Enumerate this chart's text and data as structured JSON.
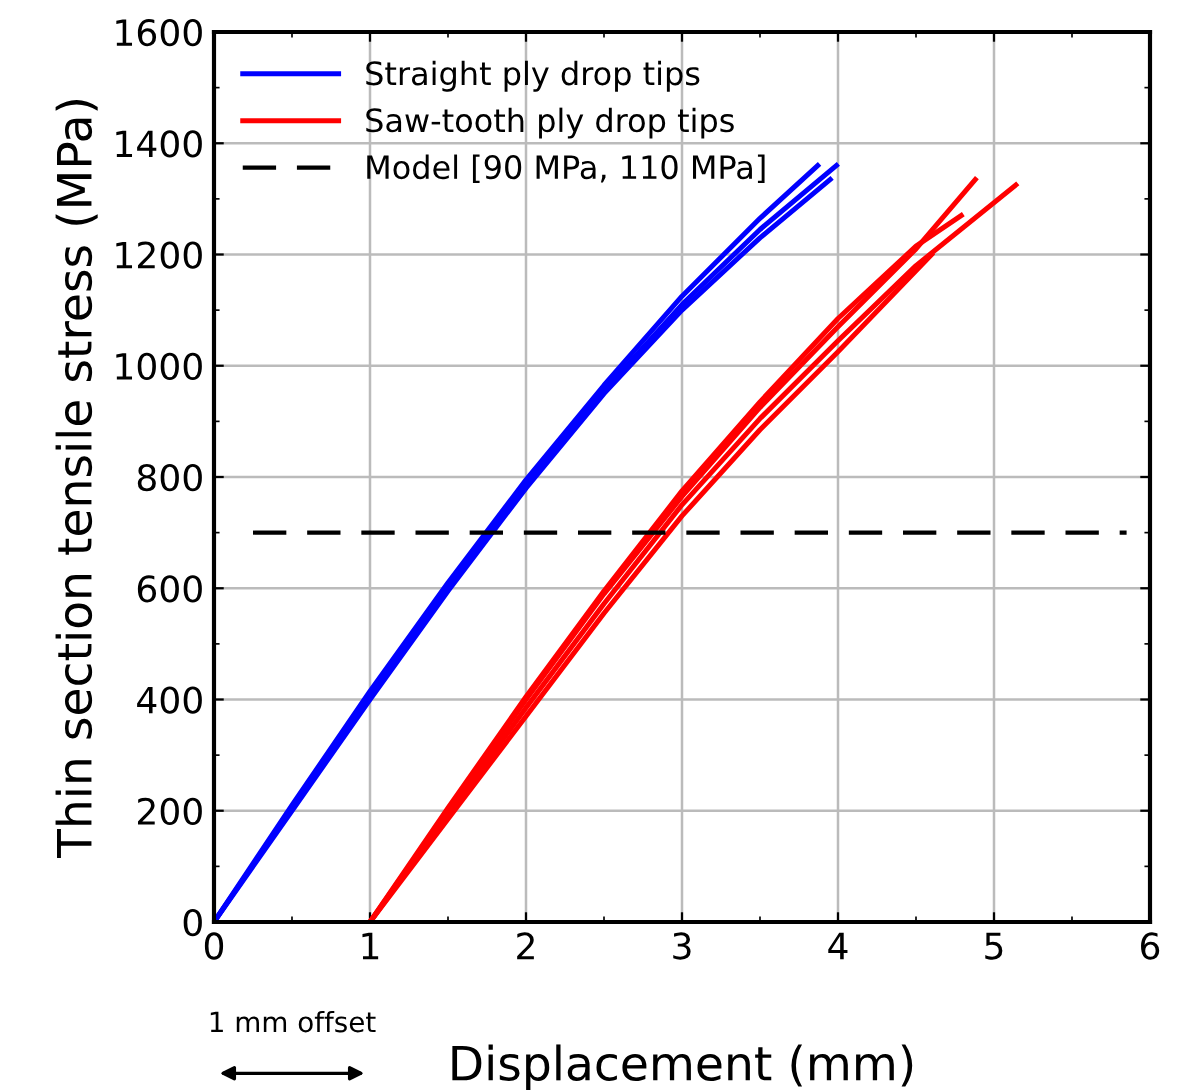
{
  "chart_data": {
    "type": "line",
    "xlabel": "Displacement (mm)",
    "ylabel": "Thin section tensile stress (MPa)",
    "xlim": [
      0,
      6
    ],
    "xticks": [
      0,
      1,
      2,
      3,
      4,
      5,
      6
    ],
    "ylim": [
      0,
      1600
    ],
    "yticks": [
      0,
      200,
      400,
      600,
      800,
      1000,
      1200,
      1400,
      1600
    ],
    "grid": true,
    "legend": "top left",
    "line_style": "solid",
    "marker": "none",
    "annotations": [
      "1 mm offset"
    ],
    "series": [
      {
        "name": "Straight ply drop tips",
        "color": "#0000ff",
        "x": [
          0,
          0.5,
          1,
          1.5,
          2,
          2.5,
          3,
          3.5,
          3.99
        ],
        "values": [
          0,
          205,
          405,
          600,
          785,
          955,
          1110,
          1245,
          1360
        ]
      },
      {
        "color": "#0000ff",
        "x": [
          0,
          0.5,
          1,
          1.5,
          2,
          2.5,
          3,
          3.5,
          3.87
        ],
        "values": [
          0,
          210,
          415,
          610,
          795,
          965,
          1125,
          1265,
          1360
        ]
      },
      {
        "color": "#0000ff",
        "x": [
          0,
          0.5,
          1,
          1.5,
          2,
          2.5,
          3,
          3.5,
          3.95
        ],
        "values": [
          0,
          200,
          400,
          595,
          780,
          950,
          1100,
          1230,
          1335
        ]
      },
      {
        "name": "Saw-tooth ply drop tips",
        "color": "#ff0000",
        "x": [
          1,
          1.5,
          2,
          2.5,
          3,
          3.5,
          4,
          4.5,
          4.88
        ],
        "values": [
          0,
          200,
          400,
          590,
          765,
          925,
          1070,
          1210,
          1335
        ]
      },
      {
        "color": "#ff0000",
        "x": [
          1,
          1.5,
          2,
          2.5,
          3,
          3.5,
          4,
          4.5,
          5.14
        ],
        "values": [
          0,
          192,
          385,
          572,
          750,
          905,
          1045,
          1180,
          1325
        ]
      },
      {
        "color": "#ff0000",
        "x": [
          1,
          1.5,
          2,
          2.5,
          3,
          3.5,
          4,
          4.5,
          4.79
        ],
        "values": [
          0,
          205,
          405,
          595,
          775,
          935,
          1085,
          1215,
          1270
        ]
      },
      {
        "color": "#ff0000",
        "x": [
          1,
          1.5,
          2,
          2.5,
          3,
          3.5,
          4,
          4.6
        ],
        "values": [
          0,
          185,
          370,
          555,
          730,
          885,
          1025,
          1200
        ]
      },
      {
        "name": "Model [90 MPa, 110 MPa]",
        "color": "#000000",
        "line_style": "dashed",
        "x": [
          0.25,
          5.85
        ],
        "values": [
          700,
          700
        ]
      }
    ]
  }
}
